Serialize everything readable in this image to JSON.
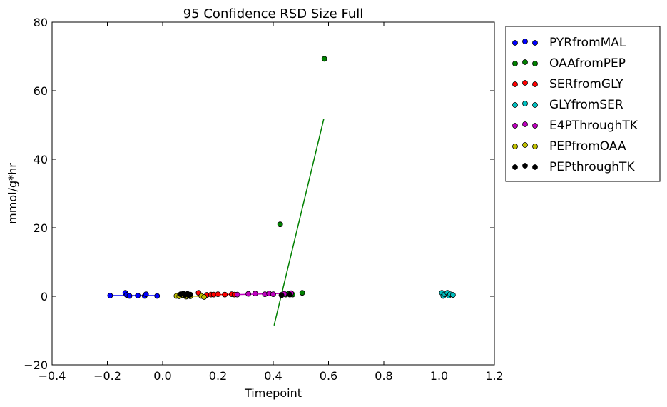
{
  "chart_data": {
    "type": "scatter",
    "title": "95 Confidence RSD Size Full",
    "xlabel": "Timepoint",
    "ylabel": "mmol/g*hr",
    "xlim": [
      -0.4,
      1.2
    ],
    "ylim": [
      -20,
      80
    ],
    "xticks": [
      "−0.4",
      "−0.2",
      "0.0",
      "0.2",
      "0.4",
      "0.6",
      "0.8",
      "1.0",
      "1.2"
    ],
    "yticks": [
      "−20",
      "0",
      "20",
      "40",
      "60",
      "80"
    ],
    "legend_position": "outside-right",
    "series": [
      {
        "name": "PYRfromMAL",
        "color": "#0000ff",
        "points": [
          [
            -0.19,
            0.2
          ],
          [
            -0.135,
            1.0
          ],
          [
            -0.13,
            0.4
          ],
          [
            -0.12,
            0.1
          ],
          [
            -0.09,
            0.2
          ],
          [
            -0.065,
            0.1
          ],
          [
            -0.06,
            0.6
          ],
          [
            -0.02,
            0.1
          ]
        ],
        "line": [
          [
            -0.19,
            0.2
          ],
          [
            -0.02,
            0.2
          ]
        ]
      },
      {
        "name": "OAAfromPEP",
        "color": "#008000",
        "points": [
          [
            0.425,
            21.0
          ],
          [
            0.43,
            0.4
          ],
          [
            0.445,
            0.5
          ],
          [
            0.455,
            0.7
          ],
          [
            0.47,
            0.5
          ],
          [
            0.505,
            1.0
          ],
          [
            0.585,
            69.3
          ]
        ],
        "line": [
          [
            0.403,
            -8.5
          ],
          [
            0.583,
            51.8
          ]
        ]
      },
      {
        "name": "SERfromGLY",
        "color": "#ff0000",
        "points": [
          [
            0.13,
            1.0
          ],
          [
            0.16,
            0.4
          ],
          [
            0.175,
            0.5
          ],
          [
            0.185,
            0.5
          ],
          [
            0.2,
            0.6
          ],
          [
            0.225,
            0.5
          ],
          [
            0.25,
            0.6
          ],
          [
            0.26,
            0.5
          ]
        ],
        "line": [
          [
            0.13,
            0.3
          ],
          [
            0.26,
            0.6
          ]
        ]
      },
      {
        "name": "GLYfromSER",
        "color": "#00bfbf",
        "points": [
          [
            1.01,
            1.0
          ],
          [
            1.015,
            0.1
          ],
          [
            1.02,
            0.6
          ],
          [
            1.03,
            1.0
          ],
          [
            1.035,
            0.2
          ],
          [
            1.04,
            0.6
          ],
          [
            1.05,
            0.4
          ]
        ],
        "line": []
      },
      {
        "name": "E4PThroughTK",
        "color": "#bf00bf",
        "points": [
          [
            0.27,
            0.5
          ],
          [
            0.31,
            0.7
          ],
          [
            0.335,
            0.8
          ],
          [
            0.37,
            0.6
          ],
          [
            0.385,
            0.8
          ],
          [
            0.4,
            0.6
          ],
          [
            0.44,
            0.7
          ],
          [
            0.465,
            0.9
          ]
        ],
        "line": [
          [
            0.27,
            0.5
          ],
          [
            0.47,
            0.9
          ]
        ]
      },
      {
        "name": "PEPfromOAA",
        "color": "#bfbf00",
        "points": [
          [
            0.05,
            0.1
          ],
          [
            0.06,
            0.0
          ],
          [
            0.075,
            0.3
          ],
          [
            0.085,
            -0.1
          ],
          [
            0.09,
            0.1
          ],
          [
            0.1,
            0.0
          ],
          [
            0.14,
            0.1
          ],
          [
            0.15,
            -0.2
          ]
        ],
        "line": [
          [
            0.05,
            0.1
          ],
          [
            0.15,
            0.0
          ]
        ]
      },
      {
        "name": "PEPthroughTK",
        "color": "#000000",
        "points": [
          [
            0.065,
            0.6
          ],
          [
            0.075,
            0.8
          ],
          [
            0.08,
            0.4
          ],
          [
            0.09,
            0.7
          ],
          [
            0.095,
            0.3
          ],
          [
            0.1,
            0.5
          ],
          [
            0.43,
            0.3
          ],
          [
            0.46,
            0.5
          ]
        ],
        "line": [
          [
            0.065,
            0.5
          ],
          [
            0.1,
            0.5
          ]
        ]
      }
    ]
  }
}
